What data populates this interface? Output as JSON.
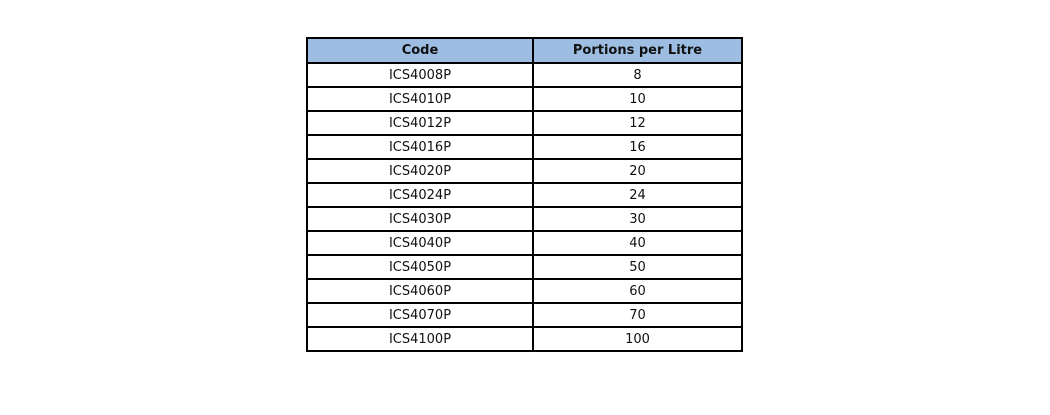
{
  "table": {
    "headers": [
      "Code",
      "Portions per Litre"
    ],
    "rows": [
      [
        "ICS4008P",
        "8"
      ],
      [
        "ICS4010P",
        "10"
      ],
      [
        "ICS4012P",
        "12"
      ],
      [
        "ICS4016P",
        "16"
      ],
      [
        "ICS4020P",
        "20"
      ],
      [
        "ICS4024P",
        "24"
      ],
      [
        "ICS4030P",
        "30"
      ],
      [
        "ICS4040P",
        "40"
      ],
      [
        "ICS4050P",
        "50"
      ],
      [
        "ICS4060P",
        "60"
      ],
      [
        "ICS4070P",
        "70"
      ],
      [
        "ICS4100P",
        "100"
      ]
    ],
    "header_color": "#9dbde3"
  }
}
